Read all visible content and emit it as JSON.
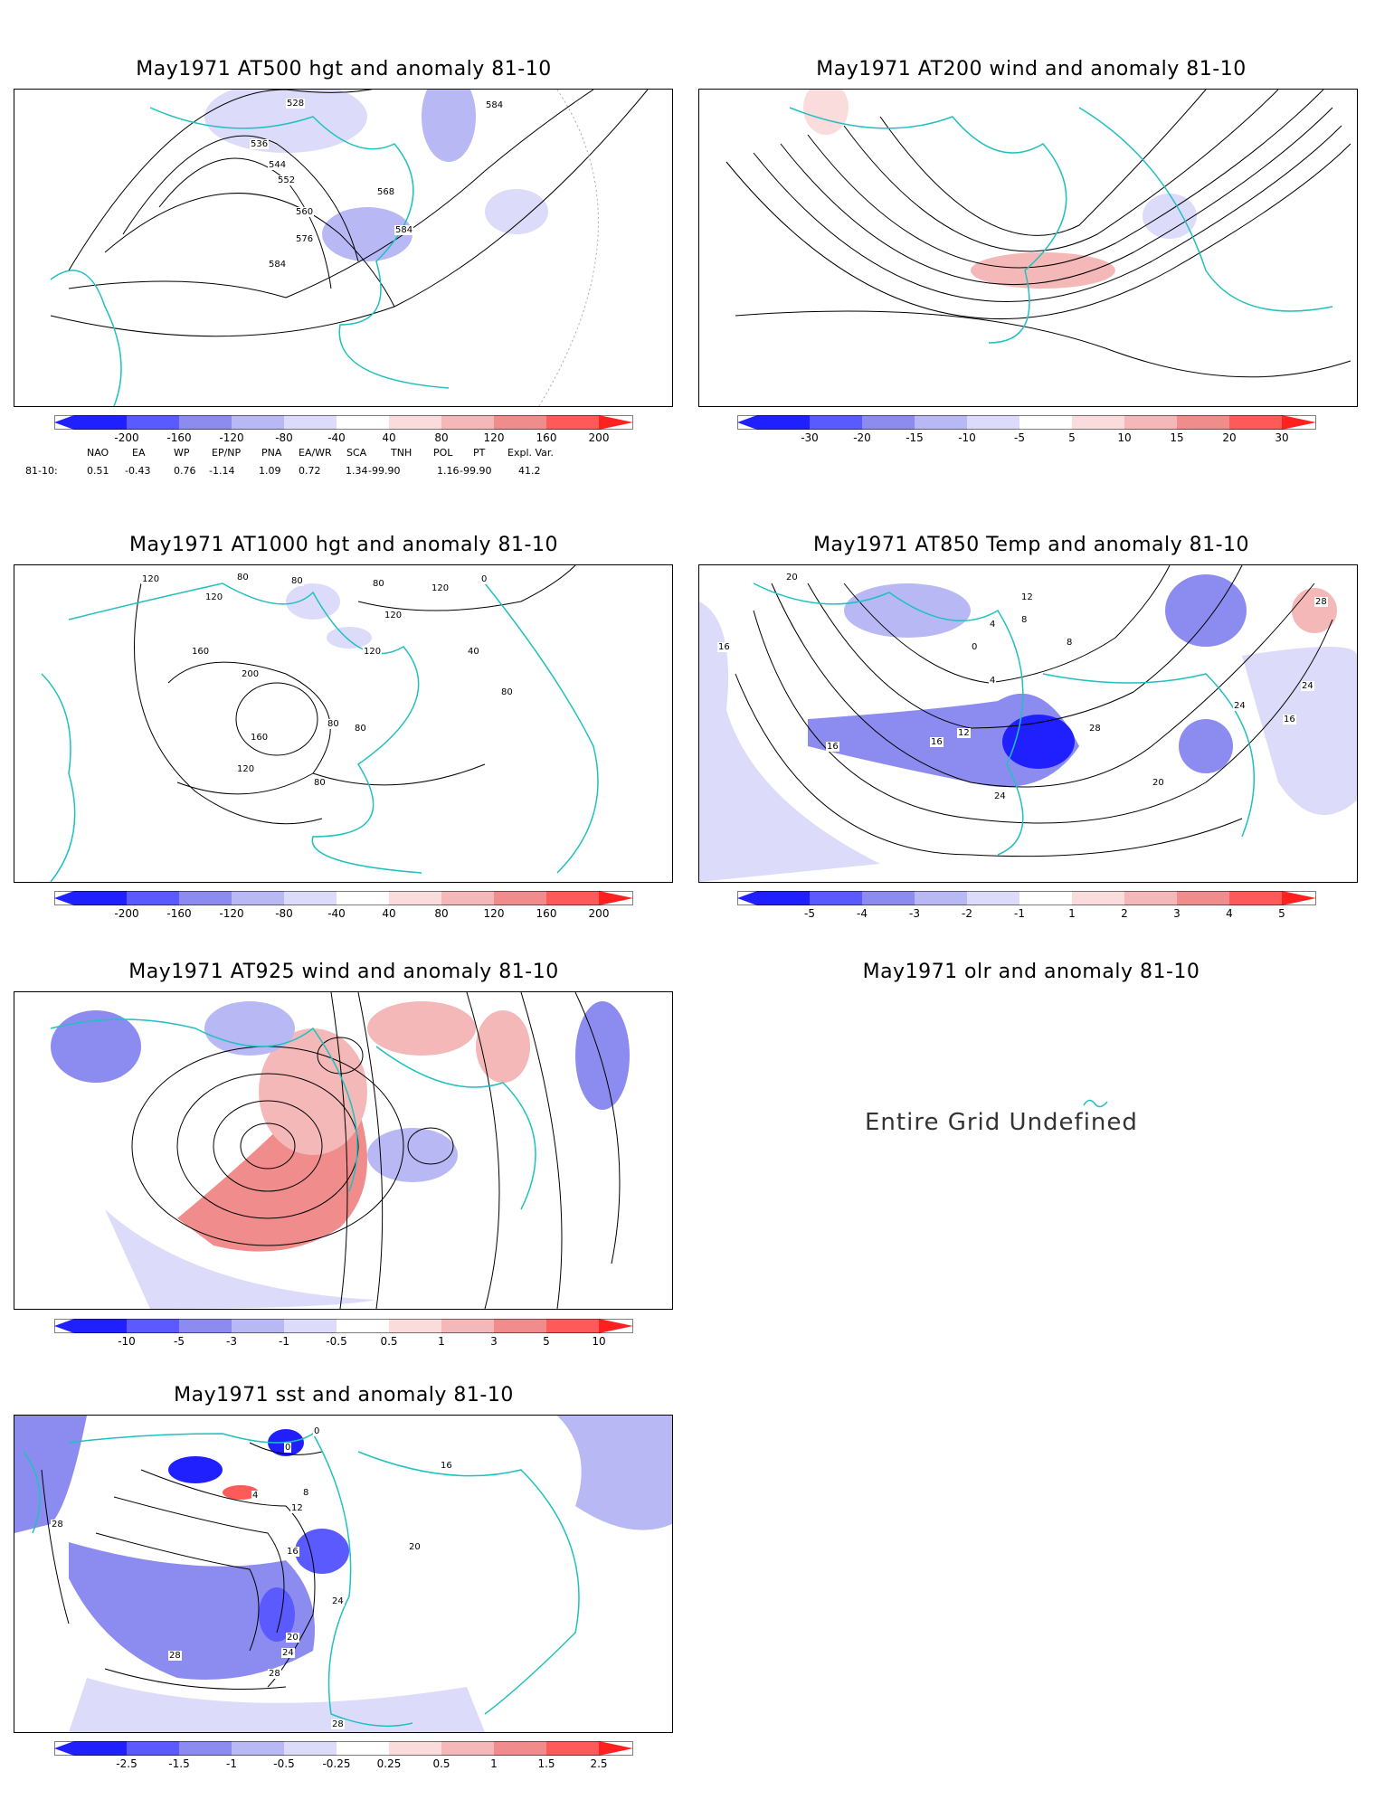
{
  "panels": {
    "p500": {
      "title": "May1971 AT500 hgt and anomaly 81-10",
      "contour_labels": [
        "528",
        "536",
        "544",
        "552",
        "560",
        "568",
        "576",
        "584",
        "584",
        "584"
      ],
      "colorbar": [
        "-200",
        "-160",
        "-120",
        "-80",
        "-40",
        "40",
        "80",
        "120",
        "160",
        "200"
      ]
    },
    "p200": {
      "title": "May1971 AT200 wind and anomaly 81-10",
      "colorbar": [
        "-30",
        "-20",
        "-15",
        "-10",
        "-5",
        "5",
        "10",
        "15",
        "20",
        "30"
      ]
    },
    "p1000": {
      "title": "May1971 AT1000 hgt and anomaly 81-10",
      "contour_labels": [
        "120",
        "120",
        "80",
        "80",
        "80",
        "120",
        "120",
        "120",
        "160",
        "200",
        "160",
        "120",
        "80",
        "80",
        "80",
        "40",
        "80",
        "0"
      ],
      "colorbar": [
        "-200",
        "-160",
        "-120",
        "-80",
        "-40",
        "40",
        "80",
        "120",
        "160",
        "200"
      ]
    },
    "p850": {
      "title": "May1971 AT850 Temp and anomaly 81-10",
      "contour_labels": [
        "20",
        "16",
        "12",
        "8",
        "4",
        "0",
        "8",
        "4",
        "28",
        "24",
        "24",
        "12",
        "16",
        "16",
        "28",
        "24",
        "20",
        "16"
      ],
      "colorbar": [
        "-5",
        "-4",
        "-3",
        "-2",
        "-1",
        "1",
        "2",
        "3",
        "4",
        "5"
      ]
    },
    "p925": {
      "title": "May1971 AT925 wind and anomaly 81-10",
      "colorbar": [
        "-10",
        "-5",
        "-3",
        "-1",
        "-0.5",
        "0.5",
        "1",
        "3",
        "5",
        "10"
      ]
    },
    "polr": {
      "title": "May1971 olr and anomaly 81-10",
      "message": "Entire Grid Undefined"
    },
    "psst": {
      "title": "May1971 sst and anomaly 81-10",
      "contour_labels": [
        "0",
        "0",
        "4",
        "8",
        "12",
        "16",
        "20",
        "24",
        "28",
        "28",
        "28",
        "28",
        "16",
        "20",
        "24"
      ],
      "colorbar": [
        "-2.5",
        "-1.5",
        "-1",
        "-0.5",
        "-0.25",
        "0.25",
        "0.5",
        "1",
        "1.5",
        "2.5"
      ]
    }
  },
  "indices": {
    "headers": [
      "NAO",
      "EA",
      "WP",
      "EP/NP",
      "PNA",
      "EA/WR",
      "SCA",
      "TNH",
      "POL",
      "PT",
      "Expl. Var."
    ],
    "row_label": "81-10:",
    "values": [
      "0.51",
      "-0.43",
      "0.76",
      "-1.14",
      "1.09",
      "0.72",
      "1.34",
      "-99.90",
      "1.16",
      "-99.90",
      "41.2"
    ]
  },
  "colors": {
    "coast": "#20c0c0",
    "neg": [
      "#2020ff",
      "#5a5aff",
      "#8c8cf0",
      "#b8b8f5",
      "#dcdcfa"
    ],
    "pos": [
      "#fadcdc",
      "#f5b8b8",
      "#f08c8c",
      "#ff5a5a",
      "#ff2020"
    ]
  }
}
